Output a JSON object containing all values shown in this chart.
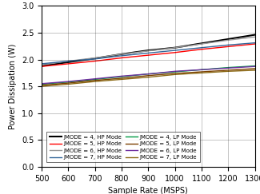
{
  "x": [
    500,
    600,
    700,
    800,
    900,
    1000,
    1100,
    1200,
    1300
  ],
  "series": [
    {
      "label": "JMODE = 4, HP Mode",
      "color": "#000000",
      "linewidth": 1.5,
      "y": [
        1.88,
        1.95,
        2.02,
        2.1,
        2.17,
        2.22,
        2.3,
        2.38,
        2.46
      ]
    },
    {
      "label": "JMODE = 5, HP Mode",
      "color": "#ff0000",
      "linewidth": 1.0,
      "y": [
        1.87,
        1.92,
        1.97,
        2.03,
        2.08,
        2.13,
        2.19,
        2.24,
        2.29
      ]
    },
    {
      "label": "JMODE = 6, HP Mode",
      "color": "#999999",
      "linewidth": 1.0,
      "y": [
        1.9,
        1.97,
        2.03,
        2.1,
        2.16,
        2.22,
        2.29,
        2.36,
        2.42
      ]
    },
    {
      "label": "JMODE = 7, HP Mode",
      "color": "#336699",
      "linewidth": 1.0,
      "y": [
        1.92,
        1.97,
        2.01,
        2.07,
        2.12,
        2.17,
        2.22,
        2.27,
        2.31
      ]
    },
    {
      "label": "JMODE = 4, LP Mode",
      "color": "#009944",
      "linewidth": 1.0,
      "y": [
        1.54,
        1.58,
        1.63,
        1.68,
        1.73,
        1.77,
        1.81,
        1.85,
        1.88
      ]
    },
    {
      "label": "JMODE = 5, LP Mode",
      "color": "#7b3f00",
      "linewidth": 1.0,
      "y": [
        1.52,
        1.56,
        1.61,
        1.65,
        1.7,
        1.74,
        1.77,
        1.8,
        1.83
      ]
    },
    {
      "label": "JMODE = 6, LP Mode",
      "color": "#7030a0",
      "linewidth": 1.0,
      "y": [
        1.55,
        1.59,
        1.64,
        1.69,
        1.73,
        1.78,
        1.81,
        1.84,
        1.87
      ]
    },
    {
      "label": "JMODE = 7, LP Mode",
      "color": "#8B6914",
      "linewidth": 1.0,
      "y": [
        1.5,
        1.54,
        1.59,
        1.63,
        1.67,
        1.72,
        1.75,
        1.78,
        1.8
      ]
    }
  ],
  "xlabel": "Sample Rate (MSPS)",
  "ylabel": "Power Dissipation (W)",
  "xlim": [
    500,
    1300
  ],
  "ylim": [
    0,
    3
  ],
  "xticks": [
    500,
    600,
    700,
    800,
    900,
    1000,
    1100,
    1200,
    1300
  ],
  "yticks": [
    0,
    0.5,
    1.0,
    1.5,
    2.0,
    2.5,
    3.0
  ],
  "tick_fontsize": 7,
  "label_fontsize": 7,
  "legend_fontsize": 5.0,
  "figsize": [
    3.25,
    2.43
  ],
  "dpi": 100
}
